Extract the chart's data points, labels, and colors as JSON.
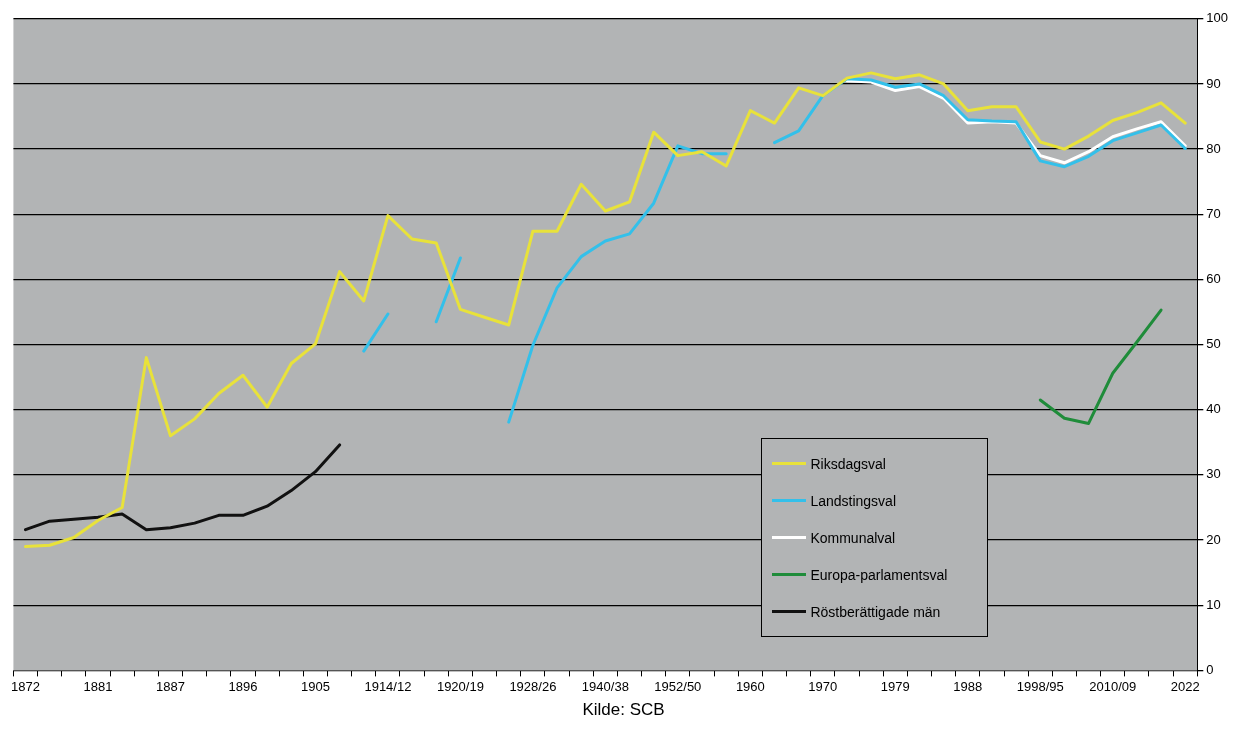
{
  "chart_data": {
    "type": "line",
    "categories": [
      "1872",
      null,
      null,
      "1881",
      null,
      null,
      "1887",
      null,
      null,
      "1896",
      null,
      null,
      "1905",
      null,
      null,
      "1914/12",
      null,
      null,
      "1920/19",
      null,
      null,
      "1928/26",
      null,
      null,
      "1940/38",
      null,
      null,
      "1952/50",
      null,
      null,
      "1960",
      null,
      null,
      "1970",
      null,
      null,
      "1979",
      null,
      null,
      "1988",
      null,
      null,
      "1998/95",
      null,
      null,
      "2010/09",
      null,
      null,
      "2022"
    ],
    "series": [
      {
        "name": "Riksdagsval",
        "color": "#e8e23a",
        "values": [
          19.0,
          19.2,
          20.4,
          23,
          25,
          48,
          36,
          38.6,
          42.5,
          45.3,
          40.4,
          47.1,
          50.1,
          61.2,
          56.7,
          69.8,
          66.2,
          65.6,
          55.4,
          54.2,
          53,
          67.4,
          67.4,
          74.6,
          70.5,
          71.9,
          82.6,
          79,
          79.6,
          77.4,
          85.9,
          84,
          89.4,
          88.2,
          90.9,
          91.7,
          90.8,
          91.4,
          90,
          85.9,
          86.5,
          86.5,
          81.1,
          80,
          82,
          84.4,
          85.6,
          87.1,
          84
        ]
      },
      {
        "name": "Landstingsval",
        "color": "#33c0ea",
        "values": [
          null,
          null,
          null,
          null,
          null,
          null,
          null,
          null,
          null,
          null,
          null,
          null,
          null,
          null,
          49,
          54.7,
          null,
          53.5,
          63.3,
          null,
          38.1,
          49.9,
          58.7,
          63.5,
          65.9,
          67,
          71.7,
          80.5,
          79.3,
          79.3,
          null,
          81,
          82.8,
          88.2,
          90.8,
          90.6,
          89.5,
          90,
          88.2,
          84.5,
          84.3,
          84.2,
          78.2,
          77.3,
          78.9,
          81.3,
          82.5,
          83.7,
          80.1
        ]
      },
      {
        "name": "Kommunalval",
        "color": "#ffffff",
        "values": [
          null,
          null,
          null,
          null,
          null,
          null,
          null,
          null,
          null,
          null,
          null,
          null,
          null,
          null,
          null,
          null,
          null,
          null,
          null,
          null,
          null,
          null,
          null,
          null,
          null,
          null,
          null,
          null,
          null,
          null,
          null,
          null,
          null,
          null,
          90.5,
          90.3,
          89,
          89.6,
          87.8,
          84,
          84.2,
          84,
          79,
          77.9,
          79.6,
          81.9,
          83.1,
          84.2,
          80.5
        ]
      },
      {
        "name": "Europa-parlamentsval",
        "color": "#1f8c3a",
        "values": [
          null,
          null,
          null,
          null,
          null,
          null,
          null,
          null,
          null,
          null,
          null,
          null,
          null,
          null,
          null,
          null,
          null,
          null,
          null,
          null,
          null,
          null,
          null,
          null,
          null,
          null,
          null,
          null,
          null,
          null,
          null,
          null,
          null,
          null,
          null,
          null,
          null,
          null,
          null,
          null,
          null,
          null,
          41.5,
          38.7,
          37.9,
          45.6,
          50.4,
          55.3,
          null
        ]
      },
      {
        "name": "Röstberättigade män",
        "color": "#111111",
        "values": [
          21.6,
          22.9,
          23.2,
          23.5,
          24,
          21.6,
          21.9,
          22.6,
          23.8,
          23.8,
          25.2,
          27.6,
          30.5,
          34.6,
          null,
          null,
          null,
          null,
          null,
          null,
          null,
          null,
          null,
          null,
          null,
          null,
          null,
          null,
          null,
          null,
          null,
          null,
          null,
          null,
          null,
          null,
          null,
          null,
          null,
          null,
          null,
          null,
          null,
          null,
          null,
          null,
          null,
          null,
          null
        ]
      }
    ],
    "ylim": [
      0,
      100
    ],
    "yticks": [
      0,
      10,
      20,
      30,
      40,
      50,
      60,
      70,
      80,
      90,
      100
    ],
    "grid": "y",
    "legend": "bottom right",
    "marker": "none",
    "line_style": "solid",
    "annotations": [
      "Kilde: SCB"
    ]
  }
}
